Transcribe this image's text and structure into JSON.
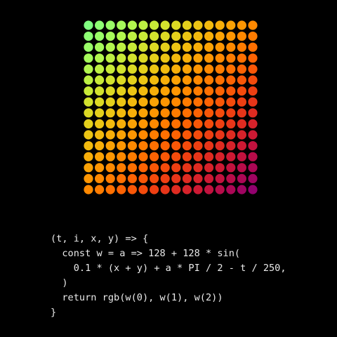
{
  "grid": {
    "columns": 16,
    "rows": 16,
    "t": 0,
    "colors": {
      "background": "#000000"
    }
  },
  "code": {
    "lines": [
      "(t, i, x, y) => {",
      "  const w = a => 128 + 128 * sin(",
      "    0.1 * (x + y) + a * PI / 2 - t / 250,",
      "  )",
      "  return rgb(w(0), w(1), w(2))",
      "}"
    ]
  }
}
